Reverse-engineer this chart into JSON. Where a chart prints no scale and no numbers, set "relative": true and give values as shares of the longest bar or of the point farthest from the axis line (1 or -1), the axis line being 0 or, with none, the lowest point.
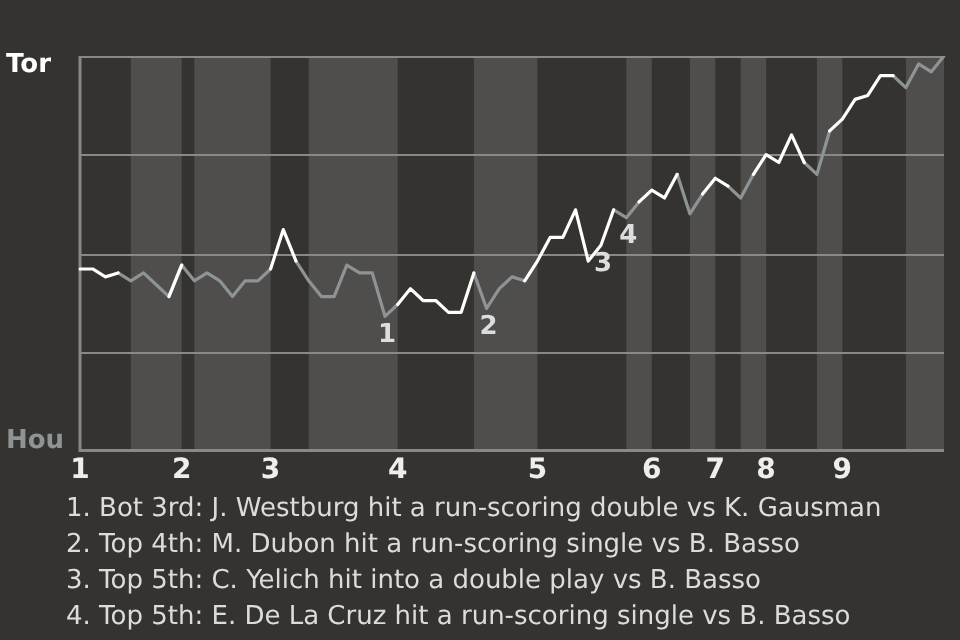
{
  "chart_data": {
    "type": "line",
    "relative": true,
    "grid": "y",
    "legend": false,
    "marker": "none",
    "categories": [
      "1",
      null,
      null,
      null,
      null,
      null,
      null,
      null,
      "2",
      null,
      null,
      null,
      null,
      null,
      null,
      "3",
      null,
      null,
      null,
      null,
      null,
      null,
      null,
      null,
      null,
      "4",
      null,
      null,
      null,
      null,
      null,
      null,
      null,
      null,
      null,
      null,
      "5",
      null,
      null,
      null,
      null,
      null,
      null,
      null,
      null,
      "6",
      null,
      null,
      null,
      null,
      "7",
      null,
      null,
      null,
      "8",
      null,
      null,
      null,
      null,
      null,
      "9",
      null,
      null,
      null,
      null,
      null,
      null,
      null,
      null
    ],
    "series": [
      {
        "color": "#ffffff",
        "values": [
          0.46,
          0.46,
          0.44,
          0.45,
          null,
          null,
          null,
          0.39,
          0.47,
          null,
          null,
          null,
          null,
          null,
          null,
          0.46,
          0.56,
          0.48,
          null,
          null,
          null,
          null,
          null,
          null,
          null,
          0.37,
          0.41,
          0.38,
          0.38,
          0.35,
          0.35,
          0.45,
          null,
          null,
          null,
          0.43,
          0.48,
          0.54,
          0.54,
          0.61,
          0.48,
          0.52,
          0.61,
          null,
          0.63,
          0.66,
          0.64,
          0.7,
          null,
          0.65,
          0.69,
          0.67,
          null,
          0.7,
          0.75,
          0.73,
          0.8,
          0.73,
          null,
          0.81,
          0.84,
          0.89,
          0.9,
          0.95,
          0.95,
          null,
          null,
          null,
          null
        ]
      },
      {
        "color": "#8e9394",
        "values": [
          null,
          null,
          null,
          0.45,
          0.43,
          0.45,
          0.42,
          0.39,
          0.47,
          0.43,
          0.45,
          0.43,
          0.39,
          0.43,
          0.43,
          0.46,
          null,
          0.48,
          0.43,
          0.39,
          0.39,
          0.47,
          0.45,
          0.45,
          0.34,
          0.37,
          null,
          null,
          null,
          null,
          null,
          0.45,
          0.36,
          0.41,
          0.44,
          0.43,
          null,
          null,
          null,
          null,
          null,
          null,
          0.61,
          0.59,
          0.63,
          null,
          null,
          0.7,
          0.6,
          0.65,
          null,
          0.67,
          0.64,
          0.7,
          null,
          null,
          null,
          0.73,
          0.7,
          0.81,
          null,
          null,
          null,
          null,
          0.95,
          0.92,
          0.98,
          0.96,
          1.0
        ]
      }
    ],
    "annotations": [
      "Tor",
      "Hou",
      {
        "text": "1",
        "y": 0.34
      },
      {
        "text": "2",
        "y": 0.36
      },
      {
        "text": "3",
        "y": 0.52
      },
      {
        "text": "4",
        "y": 0.59
      },
      "1. Bot 3rd: J. Westburg hit a run-scoring double vs K. Gausman",
      "2. Top 4th: M. Dubon hit a run-scoring single vs B. Basso",
      "3. Top 5th: C. Yelich hit into a double play vs B. Basso",
      "4. Top 5th: E. De La Cruz hit a run-scoring single vs B. Basso"
    ]
  }
}
